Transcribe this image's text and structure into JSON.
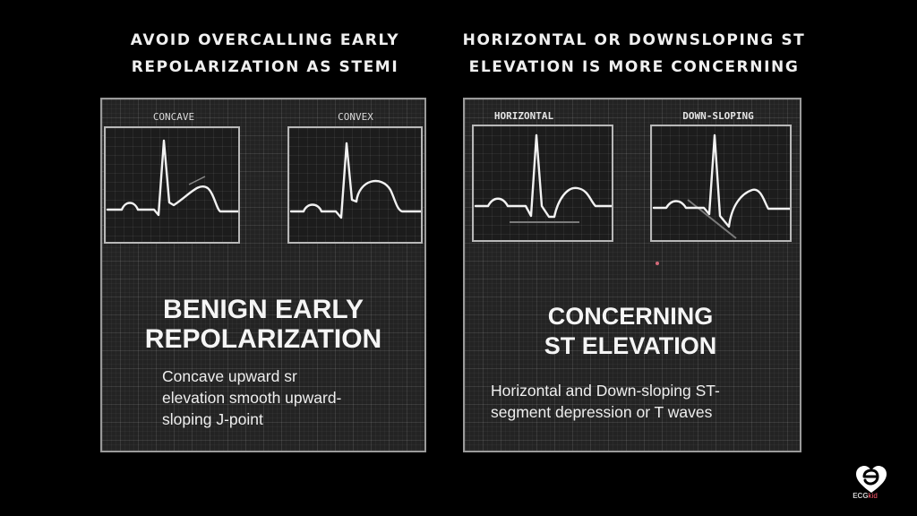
{
  "headings": {
    "left": [
      "AVOID OVERCALLING EARLY",
      "REPOLARIZATION AS STEMI"
    ],
    "right": [
      "HORIZONTAL OR DOWNSLOPING ST",
      "ELEVATION IS MORE CONCERNING"
    ]
  },
  "left_panel": {
    "strips": [
      {
        "label": "CONCAVE",
        "icon": "ecg-trace-concave-st-elevation"
      },
      {
        "label": "CONVEX",
        "icon": "ecg-trace-convex-st-elevation"
      }
    ],
    "title": [
      "BENIGN EARLY",
      "REPOLARIZATION"
    ],
    "description": [
      "Concave upward sr",
      "elevation  smooth upward-",
      "sloping J-point"
    ]
  },
  "right_panel": {
    "strips": [
      {
        "label": "HORIZONTAL",
        "icon": "ecg-trace-horizontal-st"
      },
      {
        "label": "DOWN-SLOPING",
        "icon": "ecg-trace-downsloping-st"
      }
    ],
    "title": [
      "CONCERNING",
      "ST ELEVATION"
    ],
    "description": [
      "Horizontal and Down-sloping ST-",
      "segment depression or T waves"
    ]
  },
  "brand": {
    "name": "ECG",
    "suffix": "kid",
    "icon": "ecgkid-heart-logo-icon"
  },
  "colors": {
    "background": "#000000",
    "panel": "#232323",
    "trace": "#f2f2f2",
    "accent_dot": "#d46a7a",
    "brand_accent": "#ff5a6e"
  }
}
